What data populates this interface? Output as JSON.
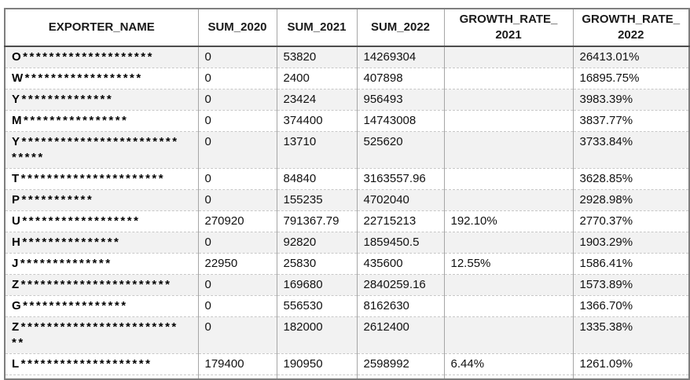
{
  "table": {
    "columns": [
      {
        "key": "name",
        "label": "EXPORTER_NAME"
      },
      {
        "key": "sum_2020",
        "label": "SUM_2020"
      },
      {
        "key": "sum_2021",
        "label": "SUM_2021"
      },
      {
        "key": "sum_2022",
        "label": "SUM_2022"
      },
      {
        "key": "growth_2021",
        "label": "GROWTH_RATE_\n2021"
      },
      {
        "key": "growth_2022",
        "label": "GROWTH_RATE_\n2022"
      }
    ],
    "rows": [
      {
        "name": "O********************",
        "sum_2020": "0",
        "sum_2021": "53820",
        "sum_2022": "14269304",
        "growth_2021": "",
        "growth_2022": "26413.01%"
      },
      {
        "name": "W******************",
        "sum_2020": "0",
        "sum_2021": "2400",
        "sum_2022": "407898",
        "growth_2021": "",
        "growth_2022": "16895.75%"
      },
      {
        "name": "Y**************",
        "sum_2020": "0",
        "sum_2021": "23424",
        "sum_2022": "956493",
        "growth_2021": "",
        "growth_2022": "3983.39%"
      },
      {
        "name": "M****************",
        "sum_2020": "0",
        "sum_2021": "374400",
        "sum_2022": "14743008",
        "growth_2021": "",
        "growth_2022": "3837.77%"
      },
      {
        "name": "Y*****************************",
        "sum_2020": "0",
        "sum_2021": "13710",
        "sum_2022": "525620",
        "growth_2021": "",
        "growth_2022": "3733.84%"
      },
      {
        "name": "T**********************",
        "sum_2020": "0",
        "sum_2021": "84840",
        "sum_2022": "3163557.96",
        "growth_2021": "",
        "growth_2022": "3628.85%"
      },
      {
        "name": "P***********",
        "sum_2020": "0",
        "sum_2021": "155235",
        "sum_2022": "4702040",
        "growth_2021": "",
        "growth_2022": "2928.98%"
      },
      {
        "name": "U******************",
        "sum_2020": "270920",
        "sum_2021": "791367.79",
        "sum_2022": "22715213",
        "growth_2021": "192.10%",
        "growth_2022": "2770.37%"
      },
      {
        "name": "H***************",
        "sum_2020": "0",
        "sum_2021": "92820",
        "sum_2022": "1859450.5",
        "growth_2021": "",
        "growth_2022": "1903.29%"
      },
      {
        "name": "J**************",
        "sum_2020": "22950",
        "sum_2021": "25830",
        "sum_2022": "435600",
        "growth_2021": "12.55%",
        "growth_2022": "1586.41%"
      },
      {
        "name": "Z***********************",
        "sum_2020": "0",
        "sum_2021": "169680",
        "sum_2022": "2840259.16",
        "growth_2021": "",
        "growth_2022": "1573.89%"
      },
      {
        "name": "G****************",
        "sum_2020": "0",
        "sum_2021": "556530",
        "sum_2022": "8162630",
        "growth_2021": "",
        "growth_2022": "1366.70%"
      },
      {
        "name": "Z**************************",
        "sum_2020": "0",
        "sum_2021": "182000",
        "sum_2022": "2612400",
        "growth_2021": "",
        "growth_2022": "1335.38%"
      },
      {
        "name": "L********************",
        "sum_2020": "179400",
        "sum_2021": "190950",
        "sum_2022": "2598992",
        "growth_2021": "6.44%",
        "growth_2022": "1261.09%"
      }
    ]
  },
  "colors": {
    "stripe": "#f2f2f2",
    "outer_border": "#7f7f7f",
    "column_border": "#a6a6a6",
    "row_border": "#c8c8c8",
    "header_rule": "#4d4d4d",
    "text": "#111111"
  }
}
